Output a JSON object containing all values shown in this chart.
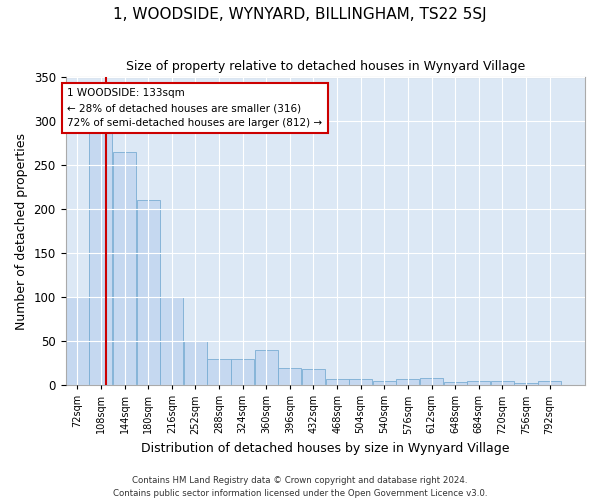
{
  "title": "1, WOODSIDE, WYNYARD, BILLINGHAM, TS22 5SJ",
  "subtitle": "Size of property relative to detached houses in Wynyard Village",
  "xlabel": "Distribution of detached houses by size in Wynyard Village",
  "ylabel": "Number of detached properties",
  "bar_color": "#c5d8f0",
  "bar_edge_color": "#7aadd4",
  "background_color": "#dce8f5",
  "grid_color": "#ffffff",
  "fig_background": "#ffffff",
  "categories": [
    "72sqm",
    "108sqm",
    "144sqm",
    "180sqm",
    "216sqm",
    "252sqm",
    "288sqm",
    "324sqm",
    "360sqm",
    "396sqm",
    "432sqm",
    "468sqm",
    "504sqm",
    "540sqm",
    "576sqm",
    "612sqm",
    "648sqm",
    "684sqm",
    "720sqm",
    "756sqm",
    "792sqm"
  ],
  "values": [
    100,
    287,
    265,
    210,
    100,
    50,
    30,
    30,
    40,
    19,
    18,
    7,
    7,
    5,
    7,
    8,
    3,
    5,
    5,
    2,
    5
  ],
  "bin_edges": [
    72,
    108,
    144,
    180,
    216,
    252,
    288,
    324,
    360,
    396,
    432,
    468,
    504,
    540,
    576,
    612,
    648,
    684,
    720,
    756,
    792,
    828
  ],
  "bin_width": 36,
  "property_size": 133,
  "vline_color": "#cc0000",
  "annotation_text": "1 WOODSIDE: 133sqm\n← 28% of detached houses are smaller (316)\n72% of semi-detached houses are larger (812) →",
  "annotation_box_facecolor": "#ffffff",
  "annotation_box_edgecolor": "#cc0000",
  "ylim": [
    0,
    350
  ],
  "yticks": [
    0,
    50,
    100,
    150,
    200,
    250,
    300,
    350
  ],
  "title_fontsize": 11,
  "subtitle_fontsize": 9,
  "ylabel_fontsize": 9,
  "xlabel_fontsize": 9,
  "footer_line1": "Contains HM Land Registry data © Crown copyright and database right 2024.",
  "footer_line2": "Contains public sector information licensed under the Open Government Licence v3.0."
}
